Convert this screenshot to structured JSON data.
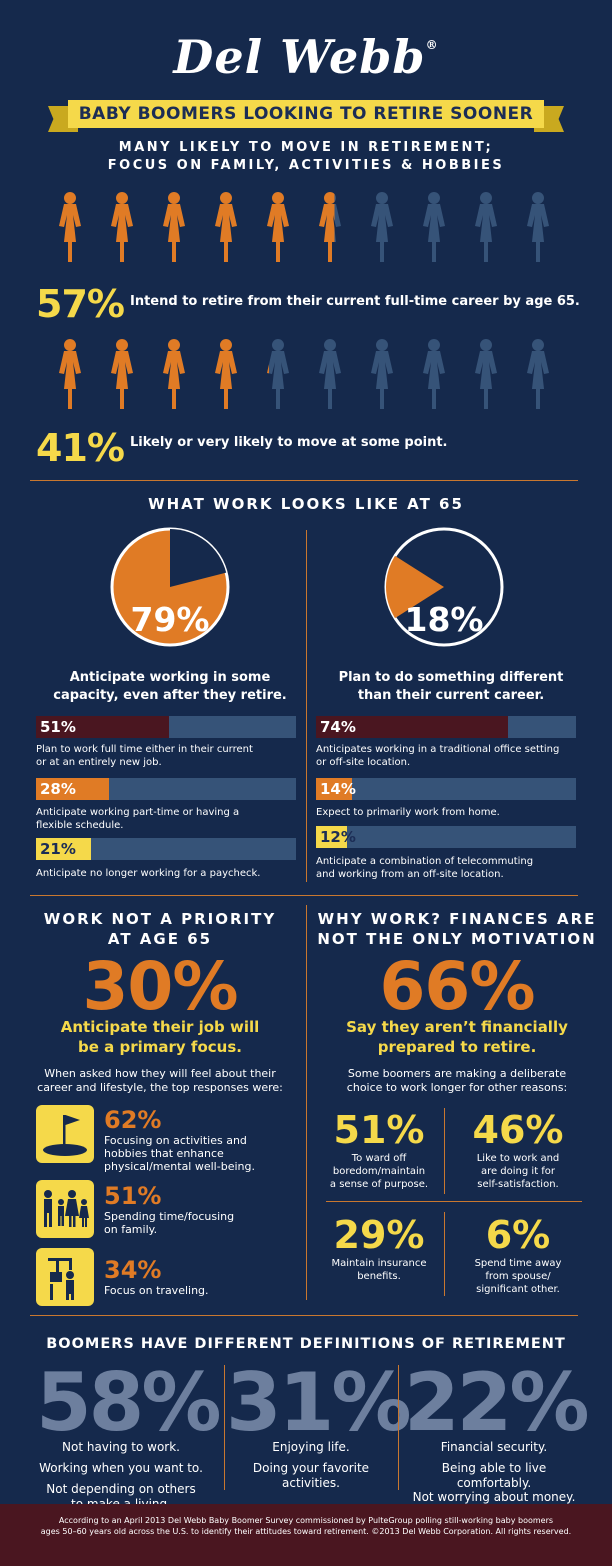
{
  "brand": {
    "logo": "Del Webb",
    "reg": "®"
  },
  "header": {
    "banner": "BABY BOOMERS LOOKING TO RETIRE SOONER",
    "subtitle_1": "MANY LIKELY TO MOVE IN RETIREMENT;",
    "subtitle_2": "FOCUS ON FAMILY, ACTIVITIES & HOBBIES"
  },
  "colors": {
    "orange": "#e07b25",
    "yellow": "#f5d94a",
    "navy": "#15294c",
    "slate": "#365378",
    "maroon": "#4a1620"
  },
  "stat1": {
    "percent": "57%",
    "text": "Intend to retire from their current full-time career by age 65.",
    "figures_filled": 5.7
  },
  "stat2": {
    "percent": "41%",
    "text": "Likely or very likely to move at some point.",
    "figures_filled": 4.1
  },
  "work65": {
    "title": "WHAT WORK LOOKS LIKE AT 65",
    "left": {
      "percent": "79%",
      "value": 79,
      "caption_1": "Anticipate working in some",
      "caption_2": "capacity, even after they retire.",
      "bars": [
        {
          "pct": "51%",
          "value": 51,
          "color": "#4a1620",
          "text_color": "#ffffff",
          "caption_1": "Plan to work full time either in their current",
          "caption_2": "or at an entirely new job."
        },
        {
          "pct": "28%",
          "value": 28,
          "color": "#e07b25",
          "text_color": "#ffffff",
          "caption_1": "Anticipate working part-time or having a",
          "caption_2": "flexible schedule."
        },
        {
          "pct": "21%",
          "value": 21,
          "color": "#f5d94a",
          "text_color": "#1c2d55",
          "caption_1": "Anticipate no longer working for a paycheck.",
          "caption_2": ""
        }
      ]
    },
    "right": {
      "percent": "18%",
      "value": 18,
      "caption_1": "Plan to do something different",
      "caption_2": "than their current career.",
      "bars": [
        {
          "pct": "74%",
          "value": 74,
          "color": "#4a1620",
          "text_color": "#ffffff",
          "caption_1": "Anticipates working in a traditional office setting",
          "caption_2": "or off-site location."
        },
        {
          "pct": "14%",
          "value": 14,
          "color": "#e07b25",
          "text_color": "#ffffff",
          "caption_1": "Expect to primarily work from home.",
          "caption_2": ""
        },
        {
          "pct": "12%",
          "value": 12,
          "color": "#f5d94a",
          "text_color": "#1c2d55",
          "caption_1": "Anticipate a combination of telecommuting",
          "caption_2": "and working from an off-site location."
        }
      ]
    }
  },
  "priority": {
    "title_1": "WORK NOT A PRIORITY",
    "title_2": "AT AGE 65",
    "percent": "30%",
    "caption_1": "Anticipate their job will",
    "caption_2": "be a primary focus.",
    "intro_1": "When asked how they will feel about their",
    "intro_2": "career and lifestyle, the top responses were:",
    "items": [
      {
        "icon": "golf-flag-icon",
        "pct": "62%",
        "line_1": "Focusing on activities and",
        "line_2": "hobbies that enhance",
        "line_3": "physical/mental well-being."
      },
      {
        "icon": "family-icon",
        "pct": "51%",
        "line_1": "Spending time/focusing",
        "line_2": "on family.",
        "line_3": ""
      },
      {
        "icon": "traveler-icon",
        "pct": "34%",
        "line_1": "Focus on traveling.",
        "line_2": "",
        "line_3": ""
      }
    ]
  },
  "why": {
    "title_1": "WHY WORK? FINANCES ARE",
    "title_2": "NOT THE ONLY MOTIVATION",
    "percent": "66%",
    "caption_1": "Say they aren’t financially",
    "caption_2": "prepared to retire.",
    "intro_1": "Some boomers are making a deliberate",
    "intro_2": "choice to work longer for other reasons:",
    "quads": [
      {
        "pct": "51%",
        "line_1": "To ward off",
        "line_2": "boredom/maintain",
        "line_3": "a sense of purpose."
      },
      {
        "pct": "46%",
        "line_1": "Like to work and",
        "line_2": "are doing it for",
        "line_3": "self-satisfaction."
      },
      {
        "pct": "29%",
        "line_1": "Maintain insurance",
        "line_2": "benefits.",
        "line_3": ""
      },
      {
        "pct": "6%",
        "line_1": "Spend time away",
        "line_2": "from spouse/",
        "line_3": "significant other."
      }
    ]
  },
  "definitions": {
    "title": "BOOMERS HAVE DIFFERENT DEFINITIONS OF RETIREMENT",
    "cols": [
      {
        "pct": "58%",
        "l1": "Not having to work.",
        "l2": "Working when you want to.",
        "l3": "Not depending on others",
        "l4": "to make a living."
      },
      {
        "pct": "31%",
        "l1": "Enjoying life.",
        "l2": "Doing your favorite",
        "l3": "activities.",
        "l4": ""
      },
      {
        "pct": "22%",
        "l1": "Financial security.",
        "l2": "Being able to live",
        "l3": "comfortably.",
        "l4": "Not worrying about money."
      }
    ]
  },
  "footer": {
    "line_1": "According to an April 2013 Del Webb Baby Boomer Survey commissioned by PulteGroup polling still-working baby boomers",
    "line_2": "ages 50–60 years old across the U.S. to identify their attitudes toward retirement. ©2013 Del Webb Corporation. All rights reserved."
  }
}
